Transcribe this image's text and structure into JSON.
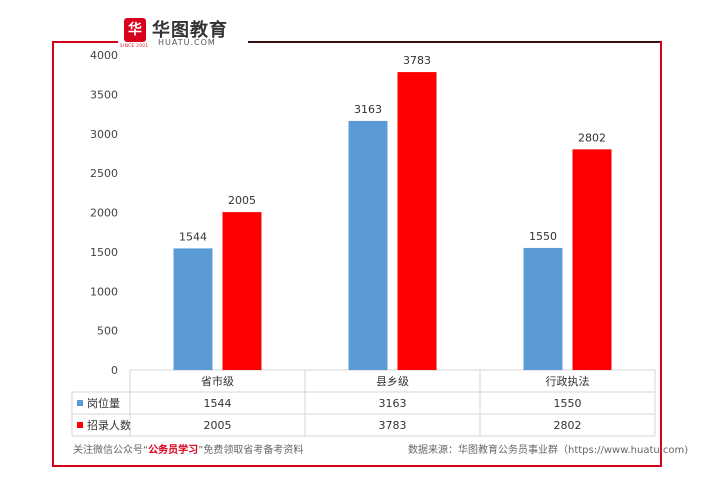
{
  "brand": {
    "name_cn": "华图教育",
    "name_en": "HUATU.COM",
    "since": "SINCE 2001",
    "mark": "华"
  },
  "chart_data": {
    "type": "bar",
    "categories": [
      "省市级",
      "县乡级",
      "行政执法"
    ],
    "series": [
      {
        "name": "岗位量",
        "color": "#5b9bd5",
        "values": [
          1544,
          3163,
          1550
        ]
      },
      {
        "name": "招录人数",
        "color": "#ff0000",
        "values": [
          2005,
          3783,
          2802
        ]
      }
    ],
    "ylim": [
      0,
      4000
    ],
    "yticks": [
      0,
      500,
      1000,
      1500,
      2000,
      2500,
      3000,
      3500,
      4000
    ],
    "data_table": true
  },
  "footer": {
    "left_prefix": "关注微信公众号“",
    "left_highlight": "公务员学习",
    "left_suffix": "”免费领取省考备考资料",
    "right": "数据来源：华图教育公务员事业群（https://www.huatu.com)"
  }
}
